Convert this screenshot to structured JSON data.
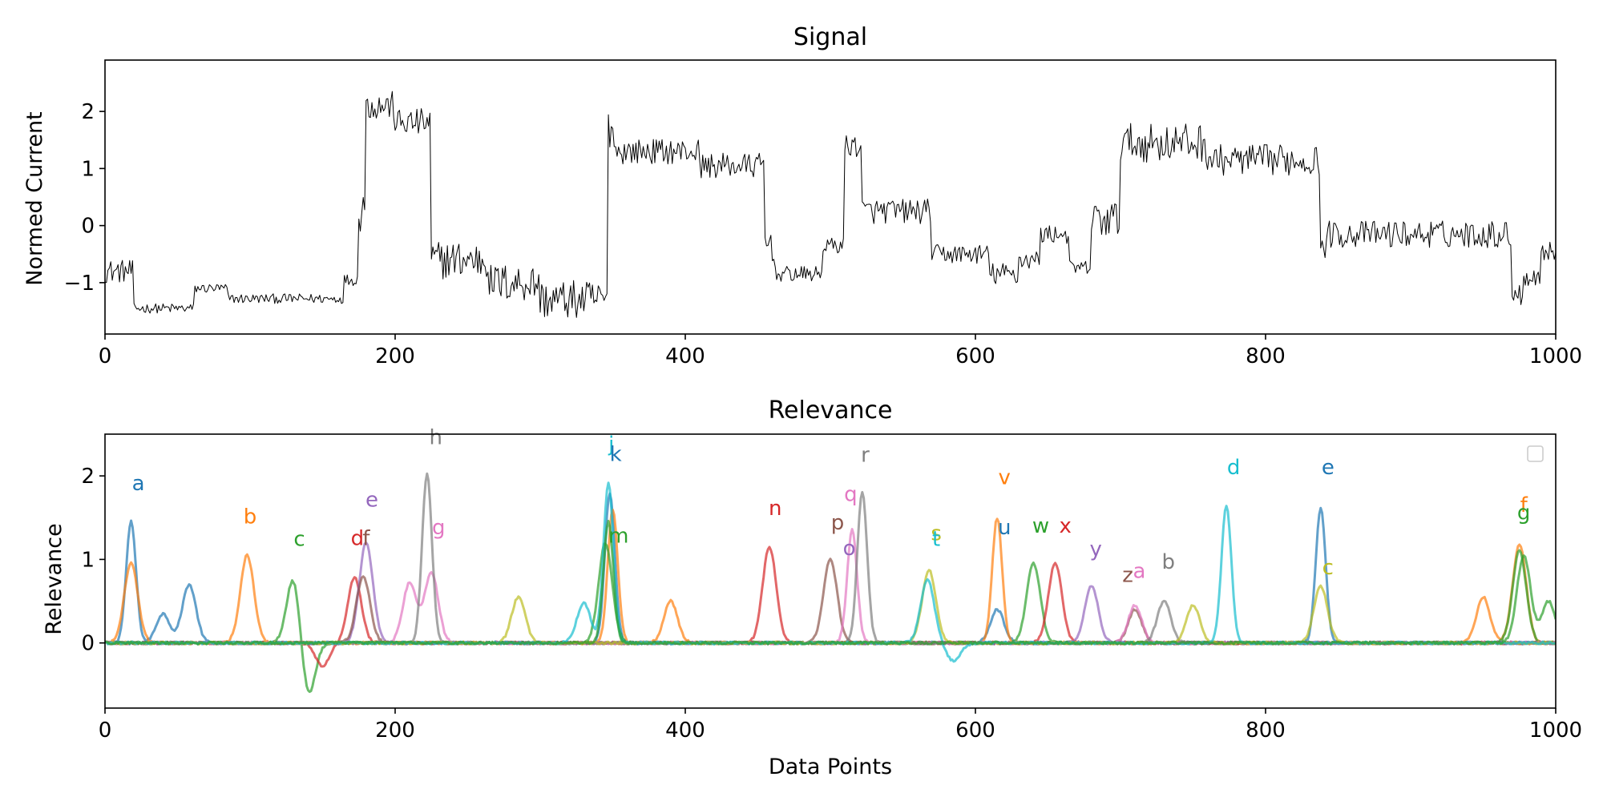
{
  "chart_data": [
    {
      "type": "line",
      "title": "Signal",
      "xlabel": "",
      "ylabel": "Normed Current",
      "xlim": [
        0,
        1000
      ],
      "ylim": [
        -1.9,
        2.9
      ],
      "xticks": [
        0,
        200,
        400,
        600,
        800,
        1000
      ],
      "yticks": [
        -1,
        0,
        1,
        2
      ],
      "ytick_labels": [
        "−1",
        "0",
        "1",
        "2"
      ],
      "grid": false,
      "line_color": "#000000",
      "segments": [
        {
          "x0": 0,
          "x1": 20,
          "level": -0.8,
          "noise": 0.12
        },
        {
          "x0": 20,
          "x1": 62,
          "level": -1.45,
          "noise": 0.05
        },
        {
          "x0": 62,
          "x1": 85,
          "level": -1.1,
          "noise": 0.05
        },
        {
          "x0": 85,
          "x1": 165,
          "level": -1.28,
          "noise": 0.05
        },
        {
          "x0": 165,
          "x1": 175,
          "level": -0.95,
          "noise": 0.06
        },
        {
          "x0": 175,
          "x1": 180,
          "level": 0.4,
          "noise": 0.3
        },
        {
          "x0": 180,
          "x1": 200,
          "level": 2.1,
          "noise": 0.15
        },
        {
          "x0": 200,
          "x1": 225,
          "level": 1.8,
          "noise": 0.15
        },
        {
          "x0": 225,
          "x1": 265,
          "level": -0.6,
          "noise": 0.2
        },
        {
          "x0": 265,
          "x1": 300,
          "level": -1.0,
          "noise": 0.2
        },
        {
          "x0": 300,
          "x1": 347,
          "level": -1.3,
          "noise": 0.2
        },
        {
          "x0": 347,
          "x1": 352,
          "level": 1.7,
          "noise": 0.2
        },
        {
          "x0": 352,
          "x1": 410,
          "level": 1.3,
          "noise": 0.13
        },
        {
          "x0": 410,
          "x1": 455,
          "level": 1.05,
          "noise": 0.13
        },
        {
          "x0": 455,
          "x1": 462,
          "level": -0.3,
          "noise": 0.2
        },
        {
          "x0": 462,
          "x1": 495,
          "level": -0.85,
          "noise": 0.08
        },
        {
          "x0": 495,
          "x1": 510,
          "level": -0.35,
          "noise": 0.08
        },
        {
          "x0": 510,
          "x1": 522,
          "level": 1.4,
          "noise": 0.12
        },
        {
          "x0": 522,
          "x1": 570,
          "level": 0.25,
          "noise": 0.13
        },
        {
          "x0": 570,
          "x1": 610,
          "level": -0.5,
          "noise": 0.1
        },
        {
          "x0": 610,
          "x1": 630,
          "level": -0.85,
          "noise": 0.12
        },
        {
          "x0": 630,
          "x1": 645,
          "level": -0.6,
          "noise": 0.1
        },
        {
          "x0": 645,
          "x1": 665,
          "level": -0.15,
          "noise": 0.1
        },
        {
          "x0": 665,
          "x1": 680,
          "level": -0.75,
          "noise": 0.08
        },
        {
          "x0": 680,
          "x1": 700,
          "level": 0.1,
          "noise": 0.2
        },
        {
          "x0": 700,
          "x1": 760,
          "level": 1.45,
          "noise": 0.2
        },
        {
          "x0": 760,
          "x1": 838,
          "level": 1.15,
          "noise": 0.16
        },
        {
          "x0": 838,
          "x1": 842,
          "level": -0.4,
          "noise": 0.1
        },
        {
          "x0": 842,
          "x1": 970,
          "level": -0.15,
          "noise": 0.14
        },
        {
          "x0": 970,
          "x1": 978,
          "level": -1.2,
          "noise": 0.12
        },
        {
          "x0": 978,
          "x1": 990,
          "level": -0.9,
          "noise": 0.1
        },
        {
          "x0": 990,
          "x1": 1000,
          "level": -0.45,
          "noise": 0.1
        }
      ]
    },
    {
      "type": "line",
      "title": "Relevance",
      "xlabel": "Data Points",
      "ylabel": "Relevance",
      "xlim": [
        0,
        1000
      ],
      "ylim": [
        -0.78,
        2.5
      ],
      "xticks": [
        0,
        200,
        400,
        600,
        800,
        1000
      ],
      "yticks": [
        0,
        1,
        2
      ],
      "ytick_labels": [
        "0",
        "1",
        "2"
      ],
      "grid": false,
      "legend": {
        "placement": "upper-right",
        "entries": []
      },
      "palette": [
        "#1f77b4",
        "#ff7f0e",
        "#2ca02c",
        "#d62728",
        "#9467bd",
        "#8c564b",
        "#e377c2",
        "#7f7f7f",
        "#bcbd22",
        "#17becf"
      ],
      "series": [
        {
          "color_index": 0,
          "peaks": [
            [
              18,
              1.45
            ],
            [
              58,
              0.7
            ],
            [
              40,
              0.35
            ],
            [
              348,
              1.8
            ],
            [
              838,
              1.62
            ],
            [
              615,
              0.4
            ]
          ]
        },
        {
          "color_index": 1,
          "peaks": [
            [
              18,
              0.95
            ],
            [
              98,
              1.05
            ],
            [
              350,
              1.6
            ],
            [
              390,
              0.5
            ],
            [
              615,
              1.5
            ],
            [
              975,
              1.18
            ],
            [
              950,
              0.55
            ]
          ]
        },
        {
          "color_index": 2,
          "peaks": [
            [
              130,
              0.8
            ],
            [
              140,
              -0.65
            ],
            [
              345,
              1.2
            ],
            [
              640,
              0.95
            ],
            [
              975,
              1.1
            ]
          ]
        },
        {
          "color_index": 3,
          "peaks": [
            [
              172,
              0.78
            ],
            [
              458,
              1.15
            ],
            [
              655,
              0.95
            ],
            [
              150,
              -0.28
            ]
          ]
        },
        {
          "color_index": 4,
          "peaks": [
            [
              180,
              1.2
            ],
            [
              680,
              0.68
            ]
          ]
        },
        {
          "color_index": 5,
          "peaks": [
            [
              178,
              0.8
            ],
            [
              500,
              1.0
            ],
            [
              710,
              0.4
            ]
          ]
        },
        {
          "color_index": 6,
          "peaks": [
            [
              210,
              0.72
            ],
            [
              225,
              0.85
            ],
            [
              515,
              1.35
            ],
            [
              710,
              0.45
            ]
          ]
        },
        {
          "color_index": 7,
          "peaks": [
            [
              222,
              2.02
            ],
            [
              522,
              1.8
            ],
            [
              730,
              0.5
            ]
          ]
        },
        {
          "color_index": 8,
          "peaks": [
            [
              285,
              0.55
            ],
            [
              568,
              0.87
            ],
            [
              750,
              0.45
            ],
            [
              838,
              0.68
            ]
          ]
        },
        {
          "color_index": 9,
          "peaks": [
            [
              330,
              0.48
            ],
            [
              347,
              1.92
            ],
            [
              567,
              0.75
            ],
            [
              773,
              1.65
            ],
            [
              585,
              -0.22
            ]
          ]
        },
        {
          "color_index": 2,
          "peaks": [
            [
              347,
              1.45
            ],
            [
              978,
              1.05
            ],
            [
              995,
              0.5
            ]
          ]
        }
      ],
      "annotations": [
        {
          "text": "a",
          "x": 23,
          "y": 1.83,
          "color_index": 0
        },
        {
          "text": "b",
          "x": 100,
          "y": 1.43,
          "color_index": 1
        },
        {
          "text": "c",
          "x": 134,
          "y": 1.16,
          "color_index": 2
        },
        {
          "text": "d",
          "x": 174,
          "y": 1.17,
          "color_index": 3
        },
        {
          "text": "f",
          "x": 180,
          "y": 1.17,
          "color_index": 5
        },
        {
          "text": "e",
          "x": 184,
          "y": 1.63,
          "color_index": 4
        },
        {
          "text": "h",
          "x": 228,
          "y": 2.38,
          "color_index": 7
        },
        {
          "text": "g",
          "x": 230,
          "y": 1.3,
          "color_index": 6
        },
        {
          "text": "j",
          "x": 349,
          "y": 2.3,
          "color_index": 9
        },
        {
          "text": "k",
          "x": 352,
          "y": 2.18,
          "color_index": 0
        },
        {
          "text": "m",
          "x": 354,
          "y": 1.2,
          "color_index": 2
        },
        {
          "text": "n",
          "x": 462,
          "y": 1.53,
          "color_index": 3
        },
        {
          "text": "p",
          "x": 505,
          "y": 1.36,
          "color_index": 5
        },
        {
          "text": "q",
          "x": 514,
          "y": 1.7,
          "color_index": 6
        },
        {
          "text": "o",
          "x": 513,
          "y": 1.05,
          "color_index": 4
        },
        {
          "text": "r",
          "x": 524,
          "y": 2.17,
          "color_index": 7
        },
        {
          "text": "s",
          "x": 573,
          "y": 1.23,
          "color_index": 8
        },
        {
          "text": "t",
          "x": 573,
          "y": 1.16,
          "color_index": 9
        },
        {
          "text": "v",
          "x": 620,
          "y": 1.9,
          "color_index": 1
        },
        {
          "text": "u",
          "x": 620,
          "y": 1.3,
          "color_index": 0
        },
        {
          "text": "w",
          "x": 645,
          "y": 1.32,
          "color_index": 2
        },
        {
          "text": "x",
          "x": 662,
          "y": 1.32,
          "color_index": 3
        },
        {
          "text": "y",
          "x": 683,
          "y": 1.04,
          "color_index": 4
        },
        {
          "text": "z",
          "x": 705,
          "y": 0.73,
          "color_index": 5
        },
        {
          "text": "a",
          "x": 713,
          "y": 0.78,
          "color_index": 6
        },
        {
          "text": "b",
          "x": 733,
          "y": 0.89,
          "color_index": 7
        },
        {
          "text": "c",
          "x": 843,
          "y": 0.82,
          "color_index": 8
        },
        {
          "text": "d",
          "x": 778,
          "y": 2.02,
          "color_index": 9
        },
        {
          "text": "e",
          "x": 843,
          "y": 2.02,
          "color_index": 0
        },
        {
          "text": "f",
          "x": 978,
          "y": 1.57,
          "color_index": 1
        },
        {
          "text": "g",
          "x": 978,
          "y": 1.48,
          "color_index": 2
        }
      ]
    }
  ]
}
